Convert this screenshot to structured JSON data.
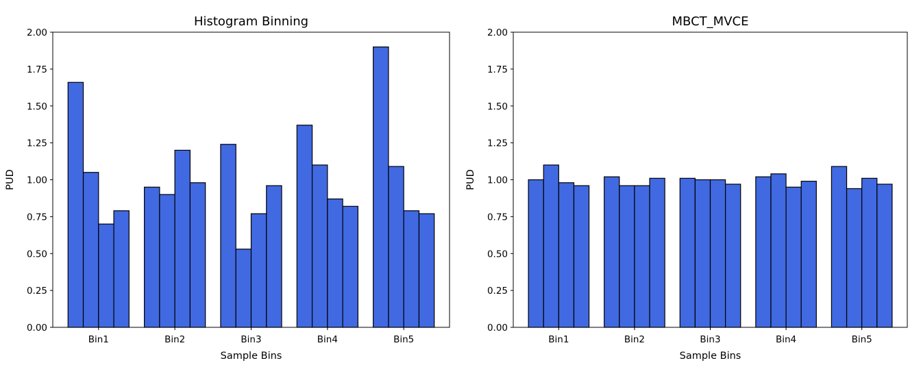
{
  "chart_data": [
    {
      "type": "bar",
      "title": "Histogram Binning",
      "xlabel": "Sample Bins",
      "ylabel": "PUD",
      "ylim": [
        0,
        2.0
      ],
      "yticks": [
        "0.00",
        "0.25",
        "0.50",
        "0.75",
        "1.00",
        "1.25",
        "1.50",
        "1.75",
        "2.00"
      ],
      "categories": [
        "Bin1",
        "Bin2",
        "Bin3",
        "Bin4",
        "Bin5"
      ],
      "bar_color": "#4169e1",
      "edge_color": "#000000",
      "values": [
        [
          1.66,
          1.05,
          0.7,
          0.79
        ],
        [
          0.95,
          0.9,
          1.2,
          0.98
        ],
        [
          1.24,
          0.53,
          0.77,
          0.96
        ],
        [
          1.37,
          1.1,
          0.87,
          0.82
        ],
        [
          1.9,
          1.09,
          0.79,
          0.77
        ]
      ]
    },
    {
      "type": "bar",
      "title": "MBCT_MVCE",
      "xlabel": "Sample Bins",
      "ylabel": "PUD",
      "ylim": [
        0,
        2.0
      ],
      "yticks": [
        "0.00",
        "0.25",
        "0.50",
        "0.75",
        "1.00",
        "1.25",
        "1.50",
        "1.75",
        "2.00"
      ],
      "categories": [
        "Bin1",
        "Bin2",
        "Bin3",
        "Bin4",
        "Bin5"
      ],
      "bar_color": "#4169e1",
      "edge_color": "#000000",
      "values": [
        [
          1.0,
          1.1,
          0.98,
          0.96
        ],
        [
          1.02,
          0.96,
          0.96,
          1.01
        ],
        [
          1.01,
          1.0,
          1.0,
          0.97
        ],
        [
          1.02,
          1.04,
          0.95,
          0.99
        ],
        [
          1.09,
          0.94,
          1.01,
          0.97
        ]
      ]
    }
  ]
}
